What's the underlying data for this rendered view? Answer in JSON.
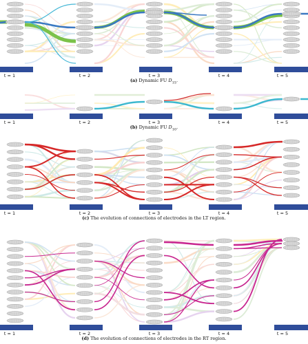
{
  "time_labels": [
    "t = 1",
    "t = 2",
    "t = 3",
    "t = 4",
    "t = 5"
  ],
  "panels": [
    {
      "id": "a",
      "caption_tag": "(a)",
      "caption_text": "Dynamic FU ",
      "caption_math": "D",
      "caption_sub": "15",
      "caption_end": "."
    },
    {
      "id": "b",
      "caption_tag": "(b)",
      "caption_text": "Dynamic FU ",
      "caption_math": "D",
      "caption_sub": "10",
      "caption_end": "."
    },
    {
      "id": "c",
      "caption_tag": "(c)",
      "caption_text": "The evolution of connections of electrodes in the LT region.",
      "caption_math": "",
      "caption_sub": "",
      "caption_end": ""
    },
    {
      "id": "d",
      "caption_tag": "(d)",
      "caption_text": "The evolution of connections of electrodes in the RT region.",
      "caption_math": "",
      "caption_sub": "",
      "caption_end": ""
    }
  ],
  "colors": {
    "timebar": "#2f4d9a",
    "panel_a_main": "#3a78c2",
    "panel_a_secondary": "#7cc24a",
    "panel_a_branch": "#45b7d6",
    "panel_b_main": "#3cb8cf",
    "panel_b_accent": "#d02a2a",
    "panel_c_main": "#d62828",
    "panel_d_main": "#c8268f",
    "node_fill": "#dcdcdc",
    "node_stroke": "#9a9a9a"
  }
}
